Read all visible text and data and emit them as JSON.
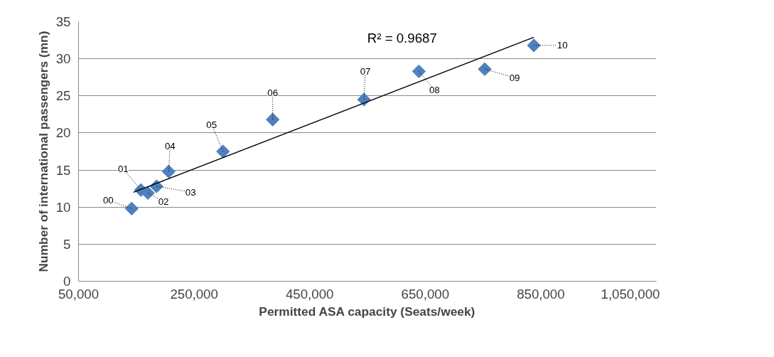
{
  "chart_data": {
    "type": "scatter",
    "xlabel": "Permitted ASA capacity (Seats/week)",
    "ylabel": "Number of international passengers (mn)",
    "x": [
      142000,
      158000,
      170000,
      185000,
      206000,
      300000,
      386000,
      544000,
      639000,
      753000,
      838000
    ],
    "values": [
      9.8,
      12.3,
      11.9,
      12.8,
      14.8,
      17.5,
      21.8,
      24.5,
      28.3,
      28.6,
      31.8
    ],
    "color": "#4f81bd",
    "marker": "diamond",
    "series": [
      {
        "type": "line",
        "color": "#000000",
        "marker": "none",
        "x": [
          145000,
          838000
        ],
        "values": [
          12.0,
          32.9
        ]
      }
    ],
    "annotations": [
      {
        "text": "00",
        "x": 142000,
        "y": 9.8
      },
      {
        "text": "01",
        "x": 158000,
        "y": 12.3
      },
      {
        "text": "02",
        "x": 170000,
        "y": 11.9
      },
      {
        "text": "03",
        "x": 185000,
        "y": 12.8
      },
      {
        "text": "04",
        "x": 206000,
        "y": 14.8
      },
      {
        "text": "05",
        "x": 300000,
        "y": 17.5
      },
      {
        "text": "06",
        "x": 386000,
        "y": 21.8
      },
      {
        "text": "07",
        "x": 544000,
        "y": 24.5
      },
      {
        "text": "08",
        "x": 639000,
        "y": 28.3
      },
      {
        "text": "09",
        "x": 753000,
        "y": 28.6
      },
      {
        "text": "10",
        "x": 838000,
        "y": 31.8
      },
      "R² = 0.9687"
    ],
    "xlim": [
      50000,
      1050000
    ],
    "xticks": [
      {
        "value": 50000,
        "label": "50,000"
      },
      {
        "value": 250000,
        "label": "250,000"
      },
      {
        "value": 450000,
        "label": "450,000"
      },
      {
        "value": 650000,
        "label": "650,000"
      },
      {
        "value": 850000,
        "label": "850,000"
      },
      {
        "value": 1050000,
        "label": "1,050,000"
      }
    ],
    "ylim": [
      0,
      35
    ],
    "yticks": [
      0,
      5,
      10,
      15,
      20,
      25,
      30,
      35
    ],
    "grid": "y"
  }
}
